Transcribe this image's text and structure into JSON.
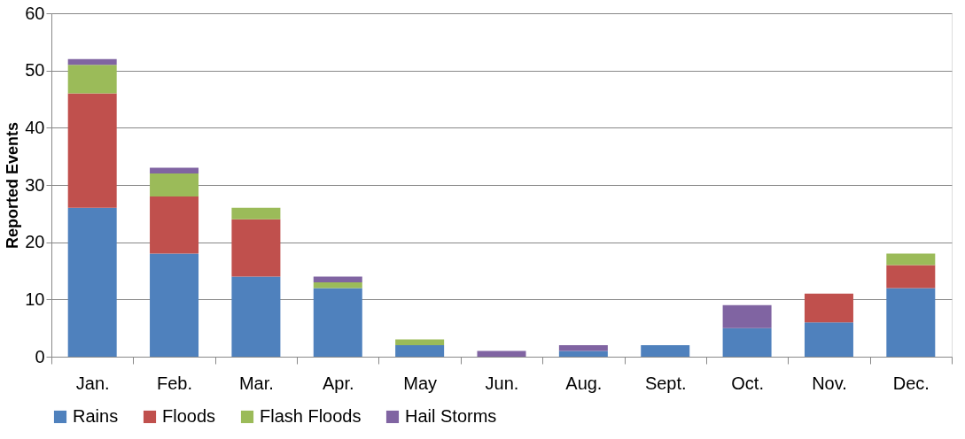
{
  "chart_data": {
    "type": "bar",
    "stacked": true,
    "ylabel": "Reported Events",
    "categories": [
      "Jan.",
      "Feb.",
      "Mar.",
      "Apr.",
      "May",
      "Jun.",
      "Aug.",
      "Sept.",
      "Oct.",
      "Nov.",
      "Dec."
    ],
    "series": [
      {
        "name": "Rains",
        "color": "#4f81bd",
        "values": [
          26,
          18,
          14,
          12,
          2,
          0,
          1,
          2,
          5,
          6,
          12
        ]
      },
      {
        "name": "Floods",
        "color": "#c0504d",
        "values": [
          20,
          10,
          10,
          0,
          0,
          0,
          0,
          0,
          0,
          5,
          4
        ]
      },
      {
        "name": "Flash Floods",
        "color": "#9bbb59",
        "values": [
          5,
          4,
          2,
          1,
          1,
          0,
          0,
          0,
          0,
          0,
          2
        ]
      },
      {
        "name": "Hail Storms",
        "color": "#8064a2",
        "values": [
          1,
          1,
          0,
          1,
          0,
          1,
          1,
          0,
          4,
          0,
          0
        ]
      }
    ],
    "ylim": [
      0,
      60
    ],
    "yticks": [
      0,
      10,
      20,
      30,
      40,
      50,
      60
    ],
    "grid": "y",
    "legend": "bottom"
  }
}
